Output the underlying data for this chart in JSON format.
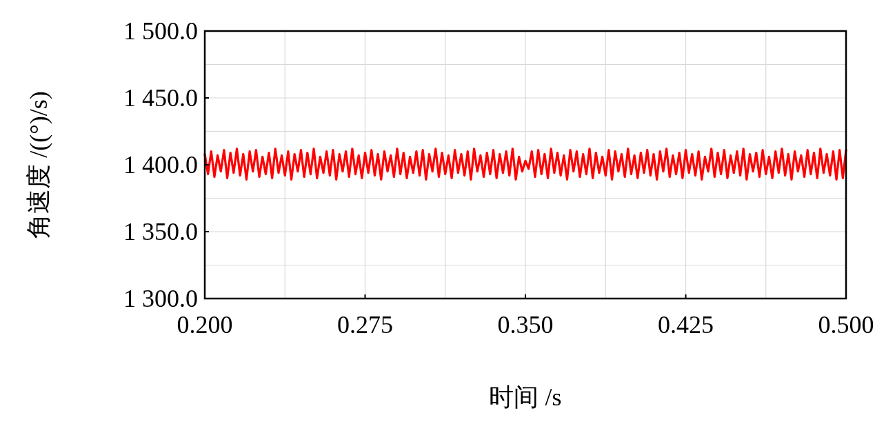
{
  "chart_data": {
    "type": "line",
    "xlabel": "时间 /s",
    "ylabel": "角速度 /((°)/s)",
    "xlim": [
      0.2,
      0.5
    ],
    "ylim": [
      1300,
      1500
    ],
    "xticks": [
      {
        "value": 0.2,
        "label": "0.200"
      },
      {
        "value": 0.275,
        "label": "0.275"
      },
      {
        "value": 0.35,
        "label": "0.350"
      },
      {
        "value": 0.425,
        "label": "0.425"
      },
      {
        "value": 0.5,
        "label": "0.500"
      }
    ],
    "yticks": [
      {
        "value": 1300,
        "label": "1 300.0"
      },
      {
        "value": 1350,
        "label": "1 350.0"
      },
      {
        "value": 1400,
        "label": "1 400.0"
      },
      {
        "value": 1450,
        "label": "1 450.0"
      },
      {
        "value": 1500,
        "label": "1 500.0"
      }
    ],
    "grid": true,
    "marker": "none",
    "line_style": "solid",
    "series": [
      {
        "color": "#ff0000",
        "x": [
          0.2,
          0.2015,
          0.203,
          0.2045,
          0.206,
          0.2075,
          0.209,
          0.2105,
          0.212,
          0.2135,
          0.215,
          0.2165,
          0.218,
          0.2195,
          0.221,
          0.2225,
          0.224,
          0.2255,
          0.227,
          0.2285,
          0.23,
          0.2315,
          0.233,
          0.2345,
          0.236,
          0.2375,
          0.239,
          0.2405,
          0.242,
          0.2435,
          0.245,
          0.2465,
          0.248,
          0.2495,
          0.251,
          0.2525,
          0.254,
          0.2555,
          0.257,
          0.2585,
          0.26,
          0.2615,
          0.263,
          0.2645,
          0.266,
          0.2675,
          0.269,
          0.2705,
          0.272,
          0.2735,
          0.275,
          0.2765,
          0.278,
          0.2795,
          0.281,
          0.2825,
          0.284,
          0.2855,
          0.287,
          0.2885,
          0.29,
          0.2915,
          0.293,
          0.2945,
          0.296,
          0.2975,
          0.299,
          0.3005,
          0.302,
          0.3035,
          0.305,
          0.3065,
          0.308,
          0.3095,
          0.311,
          0.3125,
          0.314,
          0.3155,
          0.317,
          0.3185,
          0.32,
          0.3215,
          0.323,
          0.3245,
          0.326,
          0.3275,
          0.329,
          0.3305,
          0.332,
          0.3335,
          0.335,
          0.3365,
          0.338,
          0.3395,
          0.341,
          0.3425,
          0.344,
          0.3455,
          0.347,
          0.3485,
          0.35,
          0.3515,
          0.353,
          0.3545,
          0.356,
          0.3575,
          0.359,
          0.3605,
          0.362,
          0.3635,
          0.365,
          0.3665,
          0.368,
          0.3695,
          0.371,
          0.3725,
          0.374,
          0.3755,
          0.377,
          0.3785,
          0.38,
          0.3815,
          0.383,
          0.3845,
          0.386,
          0.3875,
          0.389,
          0.3905,
          0.392,
          0.3935,
          0.395,
          0.3965,
          0.398,
          0.3995,
          0.401,
          0.4025,
          0.404,
          0.4055,
          0.407,
          0.4085,
          0.41,
          0.4115,
          0.413,
          0.4145,
          0.416,
          0.4175,
          0.419,
          0.4205,
          0.422,
          0.4235,
          0.425,
          0.4265,
          0.428,
          0.4295,
          0.431,
          0.4325,
          0.434,
          0.4355,
          0.437,
          0.4385,
          0.44,
          0.4415,
          0.443,
          0.4445,
          0.446,
          0.4475,
          0.449,
          0.4505,
          0.452,
          0.4535,
          0.455,
          0.4565,
          0.458,
          0.4595,
          0.461,
          0.4625,
          0.464,
          0.4655,
          0.467,
          0.4685,
          0.47,
          0.4715,
          0.473,
          0.4745,
          0.476,
          0.4775,
          0.479,
          0.4805,
          0.482,
          0.4835,
          0.485,
          0.4865,
          0.488,
          0.4895,
          0.491,
          0.4925,
          0.494,
          0.4955,
          0.497,
          0.4985,
          0.5
        ],
        "values": [
          1408,
          1393,
          1410,
          1391,
          1407,
          1395,
          1411,
          1390,
          1409,
          1394,
          1412,
          1392,
          1408,
          1389,
          1410,
          1395,
          1411,
          1391,
          1406,
          1393,
          1409,
          1390,
          1412,
          1394,
          1407,
          1392,
          1410,
          1389,
          1408,
          1395,
          1411,
          1391,
          1409,
          1393,
          1412,
          1390,
          1406,
          1394,
          1410,
          1392,
          1411,
          1389,
          1408,
          1395,
          1410,
          1391,
          1412,
          1393,
          1407,
          1390,
          1409,
          1394,
          1411,
          1392,
          1408,
          1389,
          1410,
          1395,
          1407,
          1391,
          1412,
          1393,
          1409,
          1390,
          1406,
          1394,
          1410,
          1392,
          1411,
          1389,
          1408,
          1395,
          1412,
          1391,
          1409,
          1393,
          1407,
          1390,
          1411,
          1394,
          1408,
          1392,
          1410,
          1389,
          1412,
          1395,
          1407,
          1391,
          1409,
          1393,
          1411,
          1390,
          1408,
          1394,
          1410,
          1392,
          1412,
          1389,
          1406,
          1395,
          1403,
          1397,
          1410,
          1391,
          1411,
          1393,
          1408,
          1390,
          1412,
          1394,
          1409,
          1392,
          1407,
          1389,
          1411,
          1395,
          1410,
          1391,
          1408,
          1393,
          1412,
          1390,
          1409,
          1394,
          1406,
          1392,
          1411,
          1389,
          1410,
          1395,
          1408,
          1391,
          1412,
          1393,
          1407,
          1390,
          1409,
          1394,
          1411,
          1392,
          1408,
          1389,
          1410,
          1395,
          1412,
          1391,
          1407,
          1393,
          1409,
          1390,
          1411,
          1394,
          1408,
          1392,
          1410,
          1389,
          1406,
          1395,
          1412,
          1391,
          1409,
          1393,
          1411,
          1390,
          1407,
          1394,
          1410,
          1392,
          1412,
          1389,
          1408,
          1395,
          1409,
          1391,
          1411,
          1393,
          1406,
          1390,
          1410,
          1394,
          1412,
          1392,
          1408,
          1389,
          1410,
          1395,
          1407,
          1391,
          1411,
          1393,
          1409,
          1390,
          1412,
          1394,
          1408,
          1392,
          1410,
          1389,
          1411,
          1390,
          1411
        ]
      }
    ]
  }
}
